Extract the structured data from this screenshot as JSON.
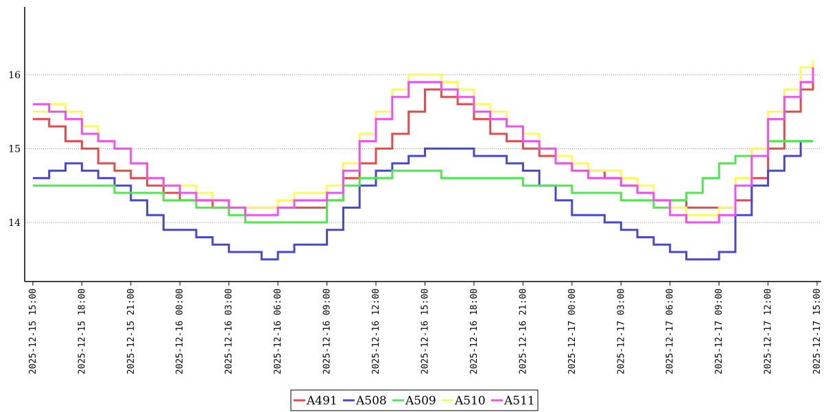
{
  "chart_data": {
    "type": "line",
    "title": "",
    "xlabel": "",
    "ylabel": "",
    "x_ticks": [
      "2025-12-15 15:00",
      "2025-12-15 18:00",
      "2025-12-15 21:00",
      "2025-12-16 00:00",
      "2025-12-16 03:00",
      "2025-12-16 06:00",
      "2025-12-16 09:00",
      "2025-12-16 12:00",
      "2025-12-16 15:00",
      "2025-12-16 18:00",
      "2025-12-16 21:00",
      "2025-12-17 00:00",
      "2025-12-17 03:00",
      "2025-12-17 06:00",
      "2025-12-17 09:00",
      "2025-12-17 12:00",
      "2025-12-17 15:00"
    ],
    "y_ticks": [
      "14",
      "15",
      "16"
    ],
    "xlim": [
      "2025-12-15 14:30",
      "2025-12-17 15:15"
    ],
    "ylim": [
      13.2,
      16.9
    ],
    "grid": "horizontal dotted",
    "legend": "bottom-center",
    "x": [
      "2025-12-15 15:00",
      "2025-12-15 16:00",
      "2025-12-15 17:00",
      "2025-12-15 18:00",
      "2025-12-15 19:00",
      "2025-12-15 20:00",
      "2025-12-15 21:00",
      "2025-12-15 22:00",
      "2025-12-15 23:00",
      "2025-12-16 00:00",
      "2025-12-16 01:00",
      "2025-12-16 02:00",
      "2025-12-16 03:00",
      "2025-12-16 04:00",
      "2025-12-16 05:00",
      "2025-12-16 06:00",
      "2025-12-16 07:00",
      "2025-12-16 08:00",
      "2025-12-16 09:00",
      "2025-12-16 10:00",
      "2025-12-16 11:00",
      "2025-12-16 12:00",
      "2025-12-16 13:00",
      "2025-12-16 14:00",
      "2025-12-16 15:00",
      "2025-12-16 16:00",
      "2025-12-16 17:00",
      "2025-12-16 18:00",
      "2025-12-16 19:00",
      "2025-12-16 20:00",
      "2025-12-16 21:00",
      "2025-12-16 22:00",
      "2025-12-16 23:00",
      "2025-12-17 00:00",
      "2025-12-17 01:00",
      "2025-12-17 02:00",
      "2025-12-17 03:00",
      "2025-12-17 04:00",
      "2025-12-17 05:00",
      "2025-12-17 06:00",
      "2025-12-17 07:00",
      "2025-12-17 08:00",
      "2025-12-17 09:00",
      "2025-12-17 10:00",
      "2025-12-17 11:00",
      "2025-12-17 12:00",
      "2025-12-17 13:00",
      "2025-12-17 14:00",
      "2025-12-17 14:45"
    ],
    "series": [
      {
        "name": "A491",
        "color": "#e84a4a",
        "values": [
          15.4,
          15.3,
          15.1,
          15.0,
          14.8,
          14.7,
          14.6,
          14.5,
          14.4,
          14.3,
          14.3,
          14.2,
          14.2,
          14.2,
          14.2,
          14.2,
          14.2,
          14.2,
          14.3,
          14.6,
          14.8,
          15.0,
          15.2,
          15.5,
          15.8,
          15.7,
          15.6,
          15.4,
          15.2,
          15.1,
          15.0,
          14.9,
          14.8,
          14.7,
          14.7,
          14.6,
          14.5,
          14.4,
          14.3,
          14.3,
          14.2,
          14.2,
          14.2,
          14.3,
          14.6,
          15.0,
          15.5,
          15.8,
          15.9
        ]
      },
      {
        "name": "A508",
        "color": "#4646d8",
        "values": [
          14.6,
          14.7,
          14.8,
          14.7,
          14.6,
          14.5,
          14.3,
          14.1,
          13.9,
          13.9,
          13.8,
          13.7,
          13.6,
          13.6,
          13.5,
          13.6,
          13.7,
          13.7,
          13.9,
          14.2,
          14.5,
          14.7,
          14.8,
          14.9,
          15.0,
          15.0,
          15.0,
          14.9,
          14.9,
          14.8,
          14.7,
          14.5,
          14.3,
          14.1,
          14.1,
          14.0,
          13.9,
          13.8,
          13.7,
          13.6,
          13.5,
          13.5,
          13.6,
          14.1,
          14.5,
          14.7,
          14.9,
          15.1,
          15.1
        ]
      },
      {
        "name": "A509",
        "color": "#4ee84e",
        "values": [
          14.5,
          14.5,
          14.5,
          14.5,
          14.5,
          14.4,
          14.4,
          14.4,
          14.3,
          14.3,
          14.2,
          14.2,
          14.1,
          14.0,
          14.0,
          14.0,
          14.0,
          14.0,
          14.3,
          14.5,
          14.6,
          14.6,
          14.7,
          14.7,
          14.7,
          14.6,
          14.6,
          14.6,
          14.6,
          14.6,
          14.5,
          14.5,
          14.5,
          14.4,
          14.4,
          14.4,
          14.3,
          14.3,
          14.2,
          14.3,
          14.4,
          14.6,
          14.8,
          14.9,
          15.0,
          15.1,
          15.1,
          15.1,
          15.1
        ]
      },
      {
        "name": "A510",
        "color": "#fafa5a",
        "values": [
          15.5,
          15.6,
          15.5,
          15.3,
          15.1,
          15.0,
          14.8,
          14.6,
          14.5,
          14.5,
          14.4,
          14.3,
          14.2,
          14.2,
          14.2,
          14.3,
          14.4,
          14.4,
          14.5,
          14.8,
          15.2,
          15.5,
          15.8,
          16.0,
          16.0,
          15.9,
          15.8,
          15.6,
          15.5,
          15.3,
          15.2,
          15.0,
          14.9,
          14.8,
          14.7,
          14.7,
          14.6,
          14.5,
          14.3,
          14.2,
          14.1,
          14.1,
          14.2,
          14.6,
          15.0,
          15.5,
          15.8,
          16.1,
          16.2
        ]
      },
      {
        "name": "A511",
        "color": "#f050f0",
        "values": [
          15.6,
          15.5,
          15.4,
          15.2,
          15.1,
          15.0,
          14.8,
          14.6,
          14.5,
          14.4,
          14.3,
          14.3,
          14.2,
          14.1,
          14.1,
          14.2,
          14.3,
          14.3,
          14.4,
          14.7,
          15.1,
          15.4,
          15.7,
          15.9,
          15.9,
          15.8,
          15.7,
          15.5,
          15.4,
          15.3,
          15.1,
          15.0,
          14.8,
          14.7,
          14.6,
          14.6,
          14.5,
          14.4,
          14.3,
          14.1,
          14.0,
          14.0,
          14.1,
          14.5,
          14.9,
          15.4,
          15.7,
          15.9,
          16.1
        ]
      }
    ]
  }
}
